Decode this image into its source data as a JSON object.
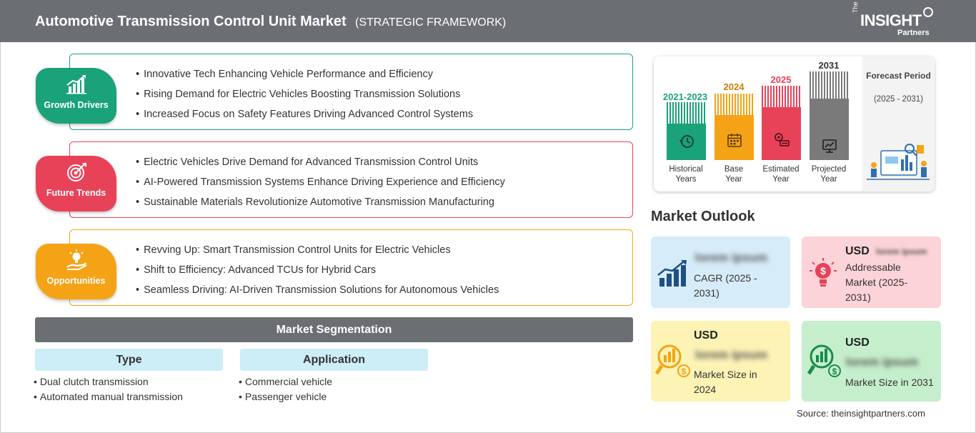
{
  "header": {
    "title": "Automotive Transmission Control Unit Market",
    "subtitle": "(STRATEGIC FRAMEWORK)",
    "logo": {
      "the": "The",
      "brand": "INSIGHT",
      "partners": "Partners"
    }
  },
  "panels": [
    {
      "label": "Growth Drivers",
      "color": "#1aa27a",
      "icon": "growth-chart-icon",
      "items": [
        "Innovative Tech Enhancing Vehicle Performance and Efficiency",
        "Rising Demand for Electric Vehicles Boosting Transmission Solutions",
        "Increased Focus on Safety Features Driving Advanced Control Systems"
      ]
    },
    {
      "label": "Future Trends",
      "color": "#e84258",
      "icon": "target-icon",
      "items": [
        "Electric Vehicles Drive Demand for Advanced Transmission Control Units",
        "AI-Powered Transmission Systems Enhance Driving Experience and Efficiency",
        "Sustainable Materials Revolutionize Automotive Transmission Manufacturing"
      ]
    },
    {
      "label": "Opportunities",
      "color": "#f5a316",
      "icon": "lightbulb-hand-icon",
      "items": [
        "Revving Up: Smart Transmission Control Units for Electric Vehicles",
        "Shift to Efficiency: Advanced TCUs for Hybrid Cars",
        "Seamless Driving: AI-Driven Transmission Solutions for Autonomous Vehicles"
      ]
    }
  ],
  "segmentation": {
    "title": "Market Segmentation",
    "columns": [
      {
        "heading": "Type",
        "items": [
          "Dual clutch transmission",
          "Automated manual transmission"
        ]
      },
      {
        "heading": "Application",
        "items": [
          "Commercial vehicle",
          "Passenger vehicle"
        ]
      }
    ]
  },
  "timeline": {
    "bars": [
      {
        "year": "2021-2023",
        "label1": "Historical",
        "label2": "Years",
        "color": "#1aa27a",
        "icon": "history-icon"
      },
      {
        "year": "2024",
        "label1": "Base",
        "label2": "Year",
        "color": "#f5a316",
        "icon": "calendar-icon"
      },
      {
        "year": "2025",
        "label1": "Estimated",
        "label2": "Year",
        "color": "#e84258",
        "icon": "estimate-icon"
      },
      {
        "year": "2031",
        "label1": "Projected",
        "label2": "Year",
        "color": "#7a7a7a",
        "icon": "projection-icon"
      }
    ],
    "forecast_label": "Forecast Period",
    "forecast_range": "(2025 - 2031)"
  },
  "outlook": {
    "title": "Market Outlook",
    "cards": [
      {
        "id": "cagr",
        "usd": "",
        "value": "lorem ipsum",
        "text": "CAGR (2025 - 2031)",
        "bg": "#d6ecf8",
        "icon": "rising-bars-icon"
      },
      {
        "id": "addressable",
        "usd": "USD",
        "value": "lorem ipsum",
        "text": "Addressable Market (2025-2031)",
        "bg": "#fbd3d8",
        "icon": "dollar-bulb-icon"
      },
      {
        "id": "size2024",
        "usd": "USD",
        "value": "lorem ipsum",
        "text": "Market Size in 2024",
        "bg": "#fdf3b5",
        "icon": "magnifier-chart-icon"
      },
      {
        "id": "size2031",
        "usd": "USD",
        "value": "lorem ipsum",
        "text": "Market Size in 2031",
        "bg": "#c5efcc",
        "icon": "magnifier-chart-icon"
      }
    ]
  },
  "source": "Source: theinsightpartners.com"
}
